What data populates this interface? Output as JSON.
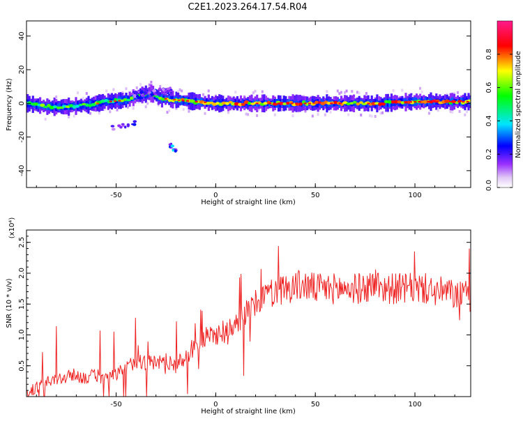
{
  "figure": {
    "title": "C2E1.2023.264.17.54.R04"
  },
  "chart_data": [
    {
      "type": "heatmap",
      "xlabel": "Height of straight line (km)",
      "ylabel": "Frequency (Hz)",
      "xlim": [
        -95,
        128
      ],
      "ylim": [
        -50,
        49
      ],
      "xticks": [
        -50,
        0,
        50,
        100
      ],
      "yticks": [
        -40,
        -20,
        0,
        20,
        40
      ],
      "colorbar": {
        "label": "Normalized spectral amplitude",
        "range": [
          0.0,
          1.0
        ],
        "ticks": [
          0.0,
          0.2,
          0.4,
          0.6,
          0.8
        ],
        "tick_labels": [
          "0.0",
          "0.2",
          "0.4",
          "0.6",
          "0.8"
        ],
        "colors": [
          "#ffffff",
          "#d6b8f2",
          "#9b30ff",
          "#0000ff",
          "#00e5ff",
          "#00ff00",
          "#ffff00",
          "#ff0000",
          "#ff2090"
        ]
      },
      "ridge": [
        [
          -95,
          0
        ],
        [
          -85,
          -2
        ],
        [
          -75,
          -2
        ],
        [
          -65,
          -1
        ],
        [
          -55,
          1
        ],
        [
          -45,
          2
        ],
        [
          -38,
          5
        ],
        [
          -33,
          6
        ],
        [
          -28,
          3
        ],
        [
          -20,
          2
        ],
        [
          -10,
          1
        ],
        [
          0,
          0
        ],
        [
          20,
          0
        ],
        [
          40,
          0
        ],
        [
          60,
          0
        ],
        [
          80,
          0
        ],
        [
          100,
          1
        ],
        [
          128,
          1
        ]
      ],
      "secondary_features": [
        {
          "x": [
            -42,
            -22
          ],
          "y": [
            5,
            8
          ],
          "amplitude": 0.2
        },
        {
          "x": [
            -52,
            -40
          ],
          "y": [
            -15,
            -11
          ],
          "amplitude": 0.2
        },
        {
          "x": [
            -23,
            -20
          ],
          "y": [
            -29,
            -25
          ],
          "amplitude": 0.3
        }
      ],
      "grid": false
    },
    {
      "type": "line",
      "xlabel": "Height of straight line (km)",
      "ylabel": "SNR (10 * v/v)",
      "y_multiplier": "(x10⁴)",
      "xlim": [
        -95,
        128
      ],
      "ylim": [
        0,
        2.7
      ],
      "xticks": [
        -50,
        0,
        50,
        100
      ],
      "yticks": [
        0.5,
        1.0,
        1.5,
        2.0,
        2.5
      ],
      "ytick_labels": [
        "0.5",
        "1.0",
        "1.5",
        "2.0",
        "2.5"
      ],
      "series": [
        {
          "color": "#ee2222",
          "x": [
            -95,
            -90,
            -85,
            -80,
            -75,
            -70,
            -65,
            -60,
            -55,
            -50,
            -45,
            -40,
            -35,
            -30,
            -25,
            -20,
            -15,
            -10,
            -5,
            0,
            5,
            10,
            15,
            20,
            25,
            30,
            35,
            40,
            45,
            50,
            55,
            60,
            65,
            70,
            75,
            80,
            85,
            90,
            95,
            100,
            105,
            110,
            115,
            120,
            125,
            128
          ],
          "y": [
            0.05,
            0.15,
            0.22,
            0.28,
            0.32,
            0.35,
            0.3,
            0.35,
            0.28,
            0.35,
            0.45,
            0.6,
            0.55,
            0.55,
            0.6,
            0.5,
            0.65,
            0.85,
            0.95,
            1.0,
            1.1,
            1.2,
            1.35,
            1.5,
            1.65,
            1.7,
            1.75,
            1.8,
            1.8,
            1.75,
            1.75,
            1.75,
            1.75,
            1.75,
            1.75,
            1.85,
            1.75,
            1.75,
            1.75,
            1.75,
            1.75,
            1.7,
            1.7,
            1.65,
            1.65,
            1.6
          ]
        }
      ],
      "grid": false
    }
  ]
}
